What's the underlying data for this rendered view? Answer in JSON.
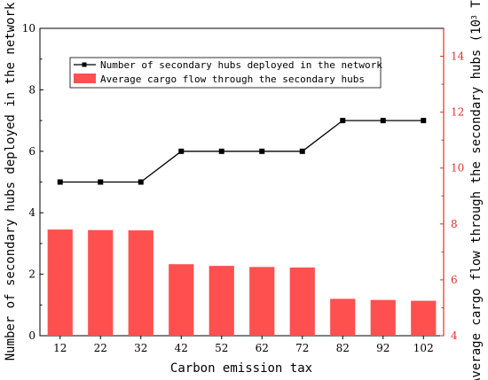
{
  "chart_data": {
    "type": "bar+line",
    "xlabel": "Carbon emission tax",
    "categories": [
      "12",
      "22",
      "32",
      "42",
      "52",
      "62",
      "72",
      "82",
      "92",
      "102"
    ],
    "left_axis": {
      "label": "Number of secondary hubs deployed in the network",
      "ylim": [
        0,
        10
      ],
      "ticks": [
        "0",
        "2",
        "4",
        "6",
        "8",
        "10"
      ]
    },
    "right_axis": {
      "label_main": "Average cargo flow through the secondary hubs (10",
      "label_sup": "3",
      "label_tail": " Ton)",
      "ylim": [
        4,
        15
      ],
      "ticks": [
        "4",
        "6",
        "8",
        "10",
        "12",
        "14"
      ],
      "color": "#e03030"
    },
    "series": [
      {
        "name": "Number of secondary hubs deployed in the network",
        "kind": "line",
        "axis": "left",
        "color": "#000000",
        "values": [
          5,
          5,
          5,
          6,
          6,
          6,
          6,
          7,
          7,
          7
        ]
      },
      {
        "name": "Average cargo flow through the secondary hubs",
        "kind": "bar",
        "axis": "right",
        "color": "#ff5050",
        "values": [
          7.8,
          7.78,
          7.77,
          6.56,
          6.5,
          6.46,
          6.44,
          5.32,
          5.28,
          5.25
        ]
      }
    ],
    "legend_position": "top-center",
    "grid": false
  }
}
